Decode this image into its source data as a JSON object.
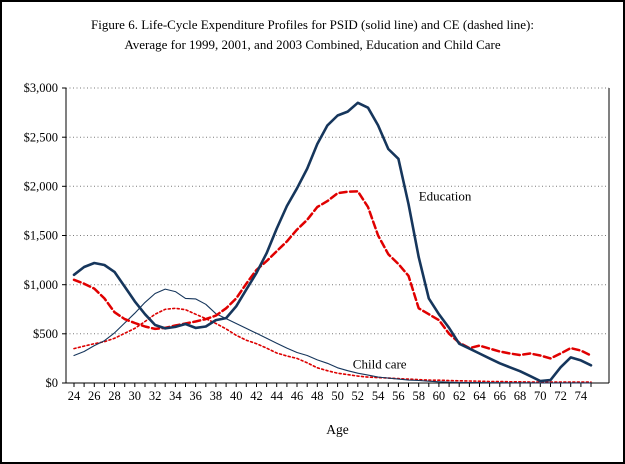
{
  "figure": {
    "title_line1": "Figure 6. Life-Cycle Expenditure Profiles for PSID (solid line) and CE (dashed line):",
    "title_line2": "Average for 1999, 2001, and 2003 Combined, Education and Child Care"
  },
  "chart_data": {
    "type": "line",
    "title": "Figure 6. Life-Cycle Expenditure Profiles for PSID (solid line) and CE (dashed line): Average for 1999, 2001, and 2003 Combined, Education and Child Care",
    "xlabel": "Age",
    "ylabel": "",
    "x_start": 24,
    "x_end": 75,
    "ylim": [
      0,
      3000
    ],
    "y_ticks": [
      0,
      500,
      1000,
      1500,
      2000,
      2500,
      3000
    ],
    "y_tick_labels": [
      "$0",
      "$500",
      "$1,000",
      "$1,500",
      "$2,000",
      "$2,500",
      "$3,000"
    ],
    "x_tick_labels": [
      "24",
      "26",
      "28",
      "30",
      "32",
      "34",
      "36",
      "38",
      "40",
      "42",
      "44",
      "46",
      "48",
      "50",
      "52",
      "54",
      "56",
      "58",
      "60",
      "62",
      "64",
      "66",
      "68",
      "70",
      "72",
      "74"
    ],
    "grid": "horizontal dotted gridlines at every $500",
    "legend": "none (line styles identified in title, categories labeled in plot)",
    "annotations": [
      {
        "label": "Education",
        "age": 58,
        "value": 1900,
        "anchor": "start"
      },
      {
        "label": "Child care",
        "age": 51.5,
        "value": 195,
        "anchor": "start"
      }
    ],
    "series": [
      {
        "id": "childcare-ce",
        "name": "Child care CE",
        "category": "Child care",
        "source": "CE",
        "color": "#dd0000",
        "width": 1.6,
        "dash": "2 2.5",
        "values": [
          350,
          375,
          400,
          420,
          455,
          505,
          555,
          625,
          700,
          750,
          760,
          745,
          700,
          655,
          605,
          550,
          485,
          435,
          400,
          355,
          305,
          275,
          250,
          205,
          155,
          125,
          100,
          85,
          70,
          60,
          55,
          50,
          45,
          40,
          35,
          30,
          28,
          25,
          22,
          20,
          18,
          15,
          15,
          12,
          12,
          10,
          10,
          10,
          10,
          10,
          10,
          10
        ]
      },
      {
        "id": "childcare-psid",
        "name": "Child care PSID",
        "category": "Child care",
        "source": "PSID",
        "color": "#16365c",
        "width": 1.1,
        "dash": "",
        "values": [
          280,
          320,
          380,
          430,
          510,
          610,
          710,
          820,
          910,
          955,
          930,
          860,
          855,
          800,
          705,
          655,
          605,
          555,
          505,
          455,
          405,
          355,
          310,
          280,
          235,
          200,
          155,
          125,
          100,
          80,
          60,
          50,
          40,
          30,
          25,
          18,
          12,
          8,
          6,
          5,
          4,
          3,
          3,
          2,
          2,
          2,
          1,
          1,
          1,
          1,
          1,
          1
        ]
      },
      {
        "id": "education-ce",
        "name": "Education CE",
        "category": "Education",
        "source": "CE",
        "color": "#e00000",
        "width": 2.5,
        "dash": "7 3.5",
        "values": [
          1050,
          1010,
          960,
          860,
          720,
          650,
          610,
          575,
          550,
          560,
          585,
          605,
          625,
          650,
          685,
          760,
          860,
          1010,
          1150,
          1240,
          1340,
          1440,
          1560,
          1660,
          1790,
          1850,
          1930,
          1945,
          1950,
          1790,
          1500,
          1310,
          1210,
          1090,
          760,
          700,
          640,
          500,
          410,
          355,
          380,
          350,
          320,
          300,
          285,
          300,
          280,
          250,
          300,
          355,
          330,
          280
        ]
      },
      {
        "id": "education-psid",
        "name": "Education PSID",
        "category": "Education",
        "source": "PSID",
        "color": "#16365c",
        "width": 2.6,
        "dash": "",
        "values": [
          1100,
          1180,
          1220,
          1200,
          1130,
          980,
          830,
          700,
          590,
          555,
          570,
          600,
          560,
          575,
          640,
          660,
          780,
          950,
          1120,
          1320,
          1570,
          1800,
          1980,
          2180,
          2430,
          2620,
          2720,
          2760,
          2850,
          2800,
          2620,
          2380,
          2280,
          1820,
          1280,
          860,
          700,
          560,
          400,
          350,
          300,
          250,
          200,
          160,
          120,
          70,
          20,
          30,
          160,
          260,
          230,
          180
        ]
      }
    ]
  }
}
